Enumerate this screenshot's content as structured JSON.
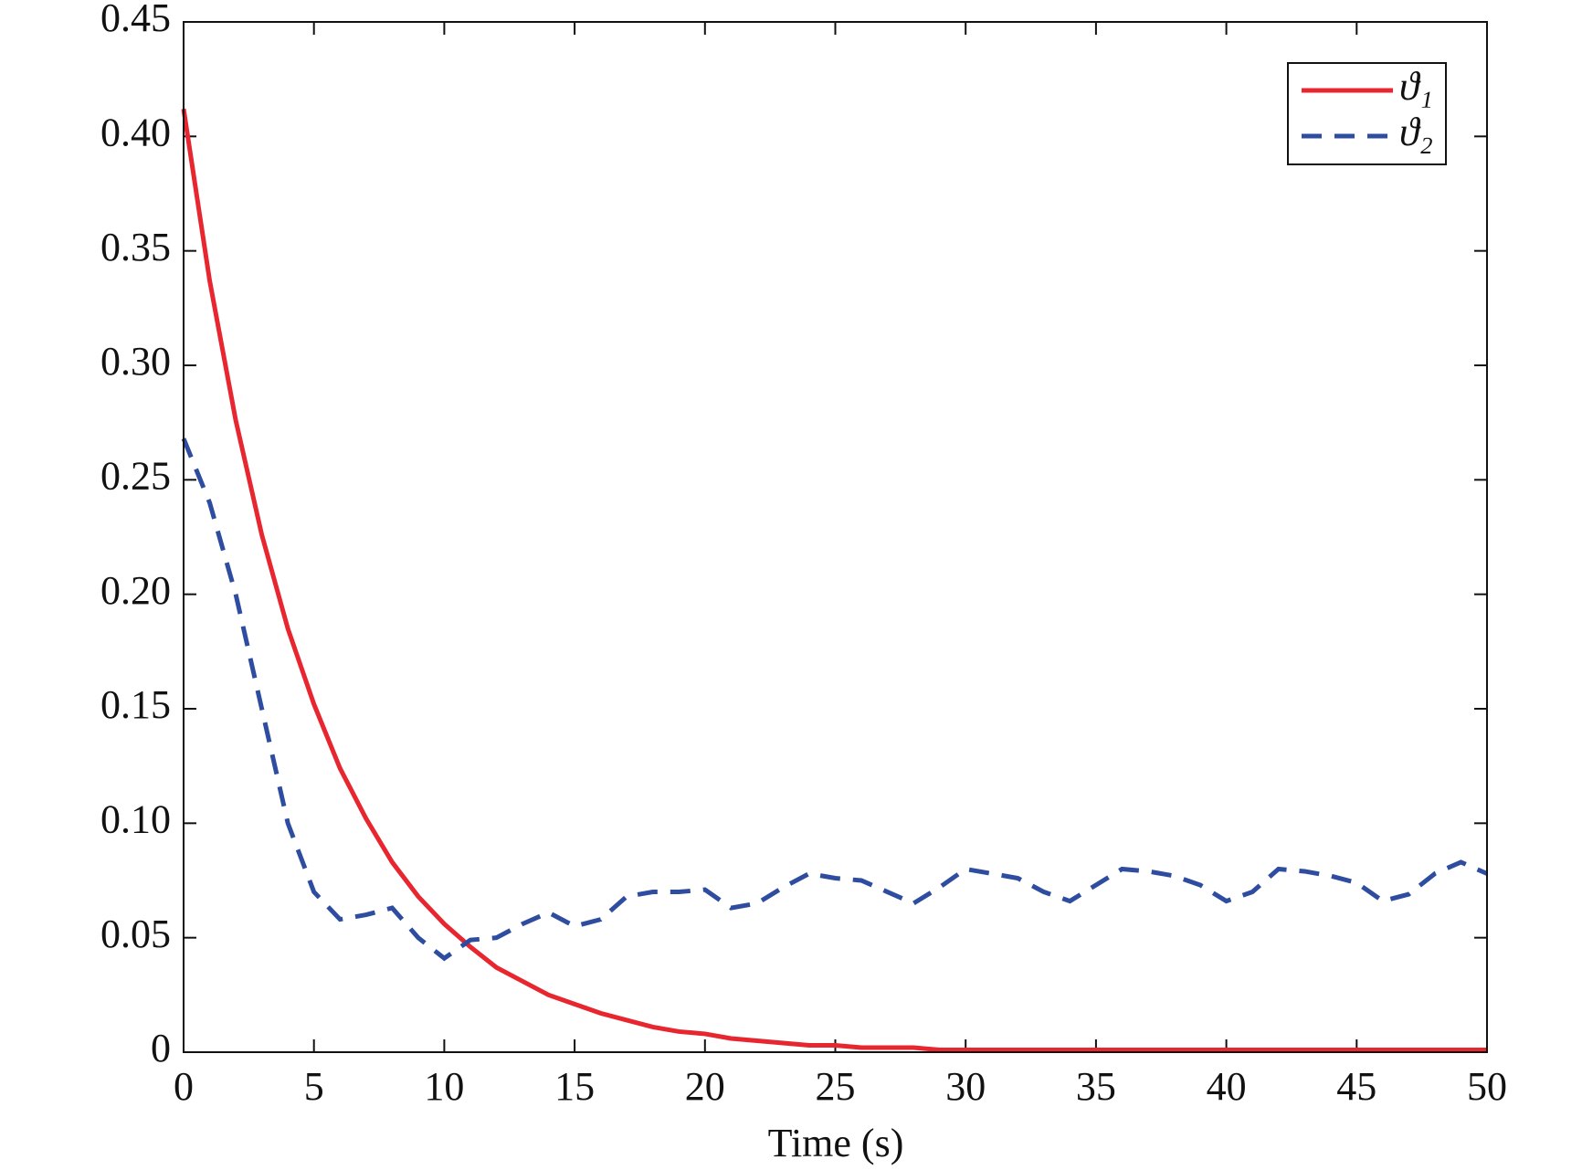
{
  "chart_data": {
    "type": "line",
    "xlabel": "Time (s)",
    "x": [
      0,
      1,
      2,
      3,
      4,
      5,
      6,
      7,
      8,
      9,
      10,
      11,
      12,
      13,
      14,
      15,
      16,
      17,
      18,
      19,
      20,
      21,
      22,
      23,
      24,
      25,
      26,
      27,
      28,
      29,
      30,
      31,
      32,
      33,
      34,
      35,
      36,
      37,
      38,
      39,
      40,
      41,
      42,
      43,
      44,
      45,
      46,
      47,
      48,
      49,
      50
    ],
    "series": [
      {
        "name": "ϑ₁",
        "color": "#e8262f",
        "dash": "solid",
        "values": [
          0.412,
          0.337,
          0.276,
          0.226,
          0.185,
          0.152,
          0.124,
          0.102,
          0.083,
          0.068,
          0.056,
          0.046,
          0.037,
          0.031,
          0.025,
          0.021,
          0.017,
          0.014,
          0.011,
          0.009,
          0.008,
          0.006,
          0.005,
          0.004,
          0.003,
          0.003,
          0.002,
          0.002,
          0.002,
          0.001,
          0.001,
          0.001,
          0.001,
          0.001,
          0.001,
          0.001,
          0.001,
          0.001,
          0.001,
          0.001,
          0.001,
          0.001,
          0.001,
          0.001,
          0.001,
          0.001,
          0.001,
          0.001,
          0.001,
          0.001,
          0.001
        ]
      },
      {
        "name": "ϑ₂",
        "color": "#2e4da0",
        "dash": "dashed",
        "values": [
          0.268,
          0.24,
          0.2,
          0.15,
          0.1,
          0.07,
          0.058,
          0.06,
          0.063,
          0.05,
          0.041,
          0.049,
          0.05,
          0.056,
          0.061,
          0.055,
          0.058,
          0.068,
          0.07,
          0.07,
          0.071,
          0.063,
          0.065,
          0.072,
          0.078,
          0.076,
          0.075,
          0.07,
          0.065,
          0.072,
          0.08,
          0.078,
          0.076,
          0.07,
          0.066,
          0.073,
          0.08,
          0.079,
          0.077,
          0.073,
          0.066,
          0.07,
          0.08,
          0.079,
          0.077,
          0.074,
          0.066,
          0.069,
          0.078,
          0.083,
          0.078
        ]
      }
    ],
    "xlim": [
      0,
      50
    ],
    "xticks": [
      0,
      5,
      10,
      15,
      20,
      25,
      30,
      35,
      40,
      45,
      50
    ],
    "ylim": [
      0,
      0.45
    ],
    "yticks": [
      0,
      0.05,
      {
        "value": 0.1,
        "label": "0.10"
      },
      0.15,
      {
        "value": 0.2,
        "label": "0.20"
      },
      0.25,
      {
        "value": 0.3,
        "label": "0.30"
      },
      0.35,
      {
        "value": 0.4,
        "label": "0.40"
      },
      0.45
    ],
    "grid": false,
    "legend": "upper right"
  }
}
